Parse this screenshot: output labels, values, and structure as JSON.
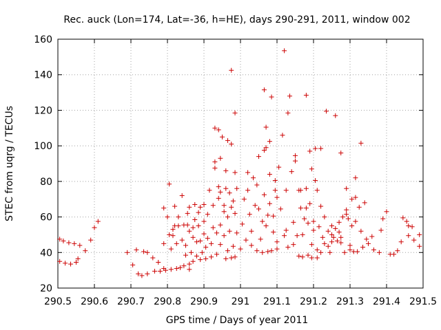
{
  "chart_data": {
    "type": "scatter",
    "title": "Rec. auck (Lon=174, Lat=-36, h=HE), days 290-291, 2011, window 002",
    "xlabel": "GPS time / Days of year 2011",
    "ylabel": "STEC from uqrg / TECUs",
    "xlim": [
      290.5,
      291.5
    ],
    "ylim": [
      20,
      160
    ],
    "xticks": [
      290.5,
      290.6,
      290.7,
      290.8,
      290.9,
      291.0,
      291.1,
      291.2,
      291.3,
      291.4,
      291.5
    ],
    "xtick_labels": [
      "290.5",
      "290.6",
      "290.7",
      "290.8",
      "290.9",
      "291",
      "291.1",
      "291.2",
      "291.3",
      "291.4",
      "291.5"
    ],
    "yticks": [
      20,
      40,
      60,
      80,
      100,
      120,
      140,
      160
    ],
    "ytick_labels": [
      "20",
      "40",
      "60",
      "80",
      "100",
      "120",
      "140",
      "160"
    ],
    "grid": true,
    "marker": "+",
    "color": "#cc0000",
    "points": [
      [
        290.505,
        47.5
      ],
      [
        290.505,
        35.0
      ],
      [
        290.515,
        46.5
      ],
      [
        290.52,
        34.0
      ],
      [
        290.53,
        45.5
      ],
      [
        290.535,
        33.5
      ],
      [
        290.545,
        45.0
      ],
      [
        290.55,
        34.5
      ],
      [
        290.56,
        44.0
      ],
      [
        290.555,
        36.5
      ],
      [
        290.575,
        41.0
      ],
      [
        290.59,
        47.0
      ],
      [
        290.6,
        54.0
      ],
      [
        290.61,
        57.5
      ],
      [
        290.69,
        40.0
      ],
      [
        290.705,
        33.0
      ],
      [
        290.715,
        41.5
      ],
      [
        290.72,
        28.0
      ],
      [
        290.73,
        27.0
      ],
      [
        290.735,
        40.5
      ],
      [
        290.745,
        28.0
      ],
      [
        290.745,
        40.0
      ],
      [
        290.76,
        37.0
      ],
      [
        290.765,
        29.5
      ],
      [
        290.775,
        34.5
      ],
      [
        290.78,
        29.5
      ],
      [
        290.79,
        31.0
      ],
      [
        290.79,
        45.0
      ],
      [
        290.795,
        30.0
      ],
      [
        290.79,
        65.0
      ],
      [
        290.8,
        60.0
      ],
      [
        290.805,
        50.0
      ],
      [
        290.805,
        78.5
      ],
      [
        290.81,
        30.5
      ],
      [
        290.81,
        42.0
      ],
      [
        290.815,
        49.5
      ],
      [
        290.815,
        53.0
      ],
      [
        290.82,
        55.0
      ],
      [
        290.82,
        66.0
      ],
      [
        290.825,
        31.0
      ],
      [
        290.825,
        45.0
      ],
      [
        290.83,
        60.0
      ],
      [
        290.83,
        55.0
      ],
      [
        290.835,
        31.5
      ],
      [
        290.84,
        47.0
      ],
      [
        290.84,
        72.0
      ],
      [
        290.845,
        32.5
      ],
      [
        290.845,
        55.5
      ],
      [
        290.85,
        44.0
      ],
      [
        290.85,
        38.5
      ],
      [
        290.855,
        55.5
      ],
      [
        290.855,
        62.0
      ],
      [
        290.86,
        30.5
      ],
      [
        290.86,
        33.5
      ],
      [
        290.86,
        65.5
      ],
      [
        290.86,
        52.0
      ],
      [
        290.865,
        40.0
      ],
      [
        290.87,
        48.5
      ],
      [
        290.87,
        35.0
      ],
      [
        290.87,
        54.0
      ],
      [
        290.875,
        67.0
      ],
      [
        290.875,
        58.5
      ],
      [
        290.88,
        46.0
      ],
      [
        290.88,
        38.0
      ],
      [
        290.885,
        55.0
      ],
      [
        290.885,
        62.5
      ],
      [
        290.89,
        65.5
      ],
      [
        290.89,
        36.0
      ],
      [
        290.89,
        46.5
      ],
      [
        290.895,
        40.0
      ],
      [
        290.9,
        50.5
      ],
      [
        290.9,
        57.5
      ],
      [
        290.9,
        67.0
      ],
      [
        290.905,
        36.5
      ],
      [
        290.905,
        43.0
      ],
      [
        290.91,
        48.0
      ],
      [
        290.91,
        61.5
      ],
      [
        290.915,
        75.0
      ],
      [
        290.92,
        37.5
      ],
      [
        290.92,
        45.0
      ],
      [
        290.925,
        66.5
      ],
      [
        290.925,
        54.0
      ],
      [
        290.93,
        87.5
      ],
      [
        290.93,
        91.0
      ],
      [
        290.93,
        110.0
      ],
      [
        290.935,
        39.0
      ],
      [
        290.935,
        51.0
      ],
      [
        290.94,
        70.5
      ],
      [
        290.94,
        77.0
      ],
      [
        290.94,
        109.0
      ],
      [
        290.945,
        44.5
      ],
      [
        290.945,
        55.5
      ],
      [
        290.945,
        74.0
      ],
      [
        290.945,
        93.0
      ],
      [
        290.95,
        105.0
      ],
      [
        290.955,
        63.0
      ],
      [
        290.955,
        66.5
      ],
      [
        290.955,
        49.5
      ],
      [
        290.96,
        76.0
      ],
      [
        290.96,
        86.0
      ],
      [
        290.96,
        36.5
      ],
      [
        290.965,
        103.0
      ],
      [
        290.965,
        60.0
      ],
      [
        290.965,
        41.0
      ],
      [
        290.97,
        52.0
      ],
      [
        290.97,
        73.5
      ],
      [
        290.975,
        142.5
      ],
      [
        290.975,
        101.0
      ],
      [
        290.975,
        65.5
      ],
      [
        290.975,
        37.0
      ],
      [
        290.98,
        43.5
      ],
      [
        290.98,
        69.0
      ],
      [
        290.985,
        118.5
      ],
      [
        290.985,
        85.0
      ],
      [
        290.985,
        62.0
      ],
      [
        290.985,
        37.5
      ],
      [
        290.99,
        51.0
      ],
      [
        290.99,
        76.0
      ],
      [
        291.0,
        42.0
      ],
      [
        291.005,
        56.0
      ],
      [
        291.01,
        70.0
      ],
      [
        291.015,
        47.0
      ],
      [
        291.02,
        75.0
      ],
      [
        291.02,
        85.0
      ],
      [
        291.025,
        61.5
      ],
      [
        291.03,
        52.0
      ],
      [
        291.03,
        44.0
      ],
      [
        291.035,
        82.0
      ],
      [
        291.04,
        66.5
      ],
      [
        291.045,
        41.0
      ],
      [
        291.045,
        78.0
      ],
      [
        291.05,
        94.0
      ],
      [
        291.05,
        64.5
      ],
      [
        291.055,
        47.5
      ],
      [
        291.06,
        57.5
      ],
      [
        291.06,
        40.0
      ],
      [
        291.065,
        72.5
      ],
      [
        291.065,
        97.5
      ],
      [
        291.065,
        131.5
      ],
      [
        291.07,
        110.5
      ],
      [
        291.07,
        99.0
      ],
      [
        291.07,
        55.0
      ],
      [
        291.075,
        40.5
      ],
      [
        291.075,
        61.0
      ],
      [
        291.08,
        84.0
      ],
      [
        291.08,
        67.5
      ],
      [
        291.08,
        102.5
      ],
      [
        291.085,
        127.5
      ],
      [
        291.085,
        41.0
      ],
      [
        291.09,
        51.5
      ],
      [
        291.09,
        60.5
      ],
      [
        291.095,
        80.5
      ],
      [
        291.095,
        75.0
      ],
      [
        291.1,
        46.0
      ],
      [
        291.1,
        42.0
      ],
      [
        291.1,
        71.0
      ],
      [
        291.105,
        88.0
      ],
      [
        291.11,
        64.5
      ],
      [
        291.115,
        106.0
      ],
      [
        291.12,
        49.5
      ],
      [
        291.12,
        153.5
      ],
      [
        291.125,
        52.5
      ],
      [
        291.125,
        75.0
      ],
      [
        291.13,
        43.0
      ],
      [
        291.13,
        118.5
      ],
      [
        291.135,
        128.0
      ],
      [
        291.14,
        85.5
      ],
      [
        291.145,
        44.5
      ],
      [
        291.145,
        57.0
      ],
      [
        291.15,
        91.5
      ],
      [
        291.15,
        94.5
      ],
      [
        291.155,
        49.5
      ],
      [
        291.16,
        75.0
      ],
      [
        291.16,
        38.0
      ],
      [
        291.165,
        65.0
      ],
      [
        291.165,
        75.0
      ],
      [
        291.17,
        50.0
      ],
      [
        291.17,
        37.5
      ],
      [
        291.175,
        59.0
      ],
      [
        291.18,
        128.5
      ],
      [
        291.18,
        65.0
      ],
      [
        291.18,
        76.0
      ],
      [
        291.185,
        38.5
      ],
      [
        291.185,
        56.5
      ],
      [
        291.19,
        97.0
      ],
      [
        291.19,
        67.5
      ],
      [
        291.195,
        87.0
      ],
      [
        291.195,
        44.5
      ],
      [
        291.195,
        37.0
      ],
      [
        291.2,
        57.5
      ],
      [
        291.2,
        52.5
      ],
      [
        291.205,
        98.5
      ],
      [
        291.205,
        80.5
      ],
      [
        291.21,
        75.0
      ],
      [
        291.21,
        41.5
      ],
      [
        291.21,
        37.0
      ],
      [
        291.215,
        54.5
      ],
      [
        291.22,
        98.5
      ],
      [
        291.22,
        66.0
      ],
      [
        291.22,
        40.0
      ],
      [
        291.225,
        48.5
      ],
      [
        291.23,
        60.0
      ],
      [
        291.23,
        45.0
      ],
      [
        291.235,
        119.5
      ],
      [
        291.24,
        52.0
      ],
      [
        291.24,
        43.5
      ],
      [
        291.245,
        40.0
      ],
      [
        291.25,
        55.0
      ],
      [
        291.25,
        50.0
      ],
      [
        291.25,
        46.0
      ],
      [
        291.255,
        48.5
      ],
      [
        291.26,
        117.0
      ],
      [
        291.26,
        53.5
      ],
      [
        291.265,
        46.5
      ],
      [
        291.27,
        57.0
      ],
      [
        291.27,
        51.5
      ],
      [
        291.275,
        96.0
      ],
      [
        291.275,
        48.5
      ],
      [
        291.275,
        45.5
      ],
      [
        291.28,
        60.0
      ],
      [
        291.285,
        40.0
      ],
      [
        291.29,
        76.0
      ],
      [
        291.29,
        64.0
      ],
      [
        291.29,
        61.5
      ],
      [
        291.295,
        59.0
      ],
      [
        291.3,
        44.0
      ],
      [
        291.3,
        41.5
      ],
      [
        291.305,
        70.0
      ],
      [
        291.305,
        55.0
      ],
      [
        291.31,
        40.5
      ],
      [
        291.315,
        82.0
      ],
      [
        291.315,
        71.0
      ],
      [
        291.315,
        57.5
      ],
      [
        291.32,
        40.5
      ],
      [
        291.325,
        65.5
      ],
      [
        291.33,
        101.5
      ],
      [
        291.33,
        52.0
      ],
      [
        291.335,
        43.0
      ],
      [
        291.34,
        68.0
      ],
      [
        291.345,
        47.5
      ],
      [
        291.35,
        45.0
      ],
      [
        291.36,
        49.0
      ],
      [
        291.365,
        41.5
      ],
      [
        291.38,
        40.0
      ],
      [
        291.385,
        52.5
      ],
      [
        291.39,
        59.0
      ],
      [
        291.4,
        63.0
      ],
      [
        291.41,
        39.0
      ],
      [
        291.42,
        39.0
      ],
      [
        291.43,
        41.0
      ],
      [
        291.44,
        46.0
      ],
      [
        291.445,
        59.5
      ],
      [
        291.455,
        57.5
      ],
      [
        291.46,
        55.0
      ],
      [
        291.46,
        49.5
      ],
      [
        291.47,
        54.5
      ],
      [
        291.475,
        47.0
      ],
      [
        291.49,
        50.0
      ],
      [
        291.49,
        43.5
      ]
    ]
  }
}
